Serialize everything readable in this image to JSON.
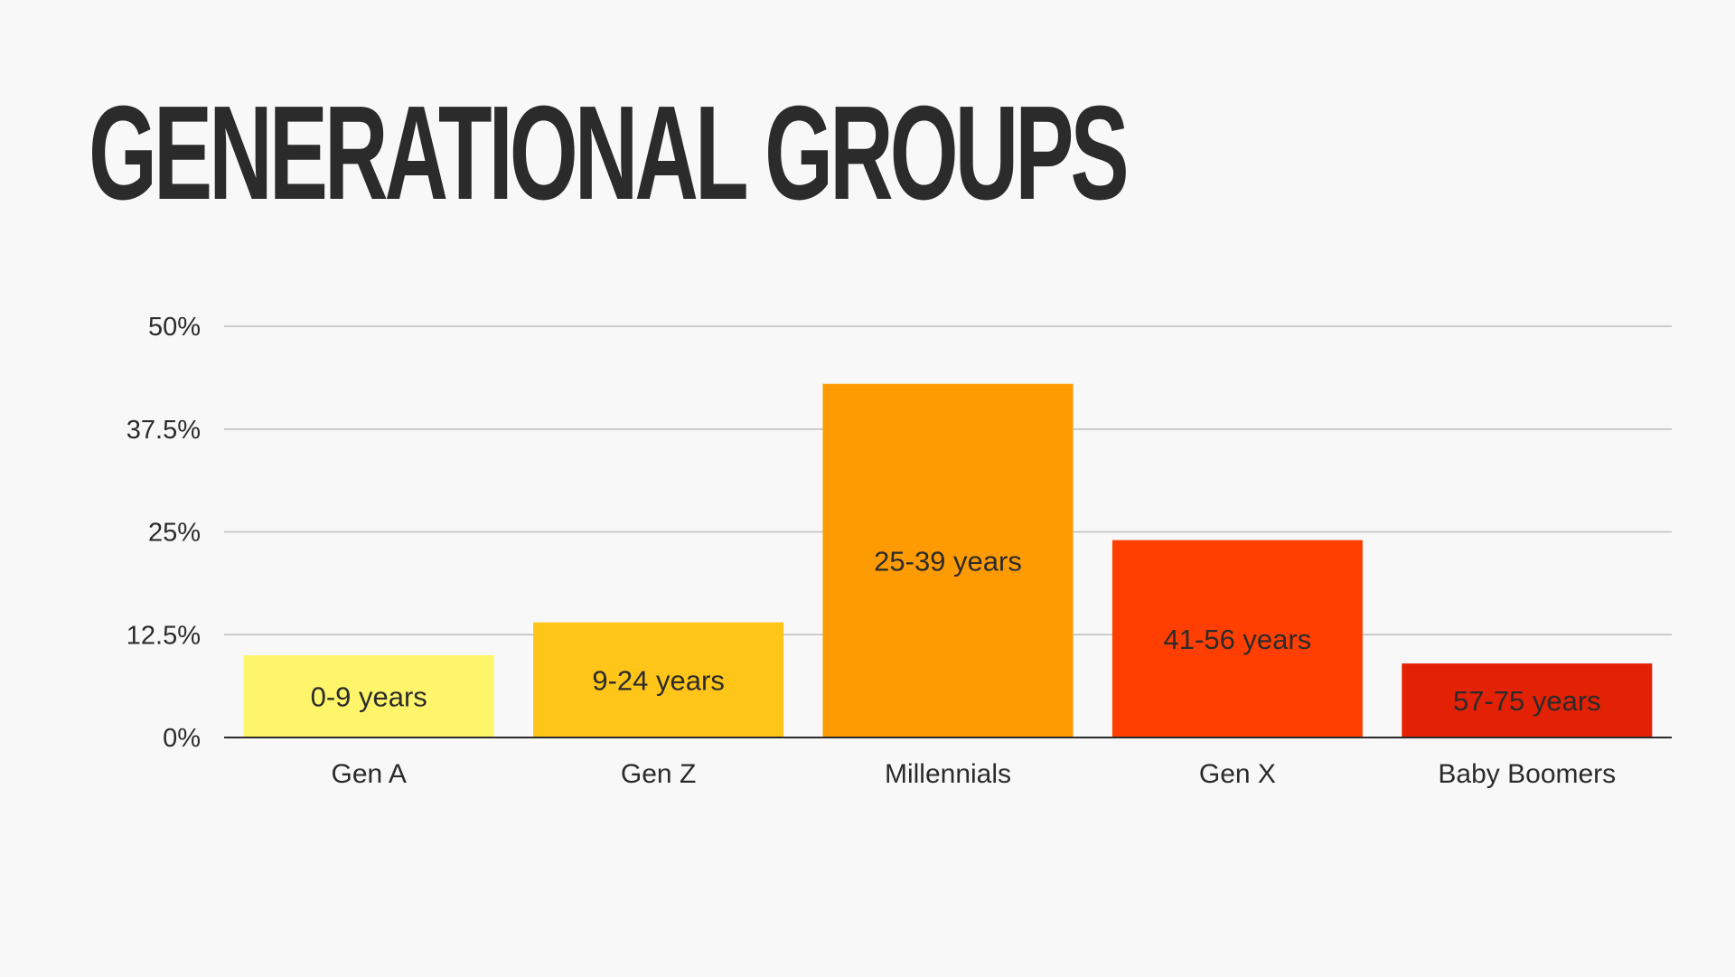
{
  "slide": {
    "title": "GENERATIONAL GROUPS"
  },
  "chart_data": {
    "type": "bar",
    "title": "",
    "xlabel": "",
    "ylabel": "",
    "ylim": [
      0,
      50
    ],
    "y_ticks": [
      "0%",
      "12.5%",
      "25%",
      "37.5%",
      "50%"
    ],
    "y_tick_values": [
      0,
      12.5,
      25,
      37.5,
      50
    ],
    "grid": true,
    "legend": "none",
    "categories": [
      "Gen A",
      "Gen Z",
      "Millennials",
      "Gen X",
      "Baby Boomers"
    ],
    "values": [
      10,
      14,
      43,
      24,
      9
    ],
    "data_labels": [
      "0-9 years",
      "9-24 years",
      "25-39 years",
      "41-56 years",
      "57-75 years"
    ],
    "colors": [
      "#fff56b",
      "#ffc619",
      "#ff9b02",
      "#ff3f02",
      "#e32104"
    ],
    "label_color": "#2b2b2b",
    "gridline_color": "#bdbdbd",
    "axis_color": "#2b2b2b"
  }
}
